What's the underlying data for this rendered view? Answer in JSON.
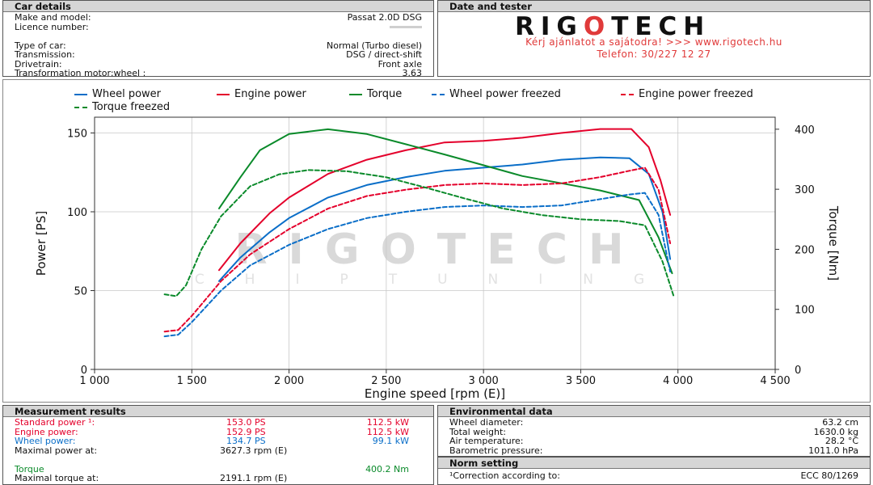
{
  "car_details": {
    "title": "Car details",
    "rows": [
      {
        "label": "Make and model:",
        "value": "Passat 2.0D DSG"
      },
      {
        "label": "Licence number:",
        "value": ""
      },
      {
        "label": "",
        "value": ""
      },
      {
        "label": "Type of car:",
        "value": "Normal (Turbo diesel)"
      },
      {
        "label": "Transmission:",
        "value": "DSG / direct-shift"
      },
      {
        "label": "Drivetrain:",
        "value": "Front axle"
      },
      {
        "label": "Transformation motor:wheel :",
        "value": "3.63"
      }
    ]
  },
  "tester": {
    "title": "Date and tester",
    "logo_left": "RIG",
    "logo_mid": "O",
    "logo_right": "TECH",
    "promo_line1": "Kérj ajánlatot a sajátodra!  >>>  www.rigotech.hu",
    "promo_line2": "Telefon: 30/227 12 27"
  },
  "watermark": {
    "big": "RIGOTECH",
    "small": "CHIPTUNING"
  },
  "colors": {
    "wheel": "#0a6ec8",
    "engine": "#e4002b",
    "torque": "#0a8a2a",
    "grid": "#c8c8c8",
    "plot_border": "#333333"
  },
  "chart_data": {
    "type": "line",
    "xlabel": "Engine speed [rpm (E)]",
    "ylabel": "Power [PS]",
    "y2label": "Torque [Nm]",
    "xlim": [
      1000,
      4500
    ],
    "ylim": [
      0,
      160
    ],
    "y2lim": [
      0,
      420
    ],
    "x_ticks": [
      1000,
      1500,
      2000,
      2500,
      3000,
      3500,
      4000,
      4500
    ],
    "x_tick_labels": [
      "1 000",
      "1 500",
      "2 000",
      "2 500",
      "3 000",
      "3 500",
      "4 000",
      "4 500"
    ],
    "y_ticks": [
      0,
      50,
      100,
      150
    ],
    "y2_ticks": [
      0,
      100,
      200,
      300,
      400
    ],
    "grid": true,
    "legend_position": "top",
    "series": [
      {
        "name": "Wheel power",
        "axis": "left",
        "style": "solid",
        "color": "#0a6ec8",
        "x": [
          1640,
          1750,
          1900,
          2000,
          2200,
          2400,
          2600,
          2800,
          3000,
          3200,
          3400,
          3600,
          3750,
          3850,
          3920,
          3960
        ],
        "y": [
          56,
          71,
          87,
          96,
          109,
          117,
          122,
          126,
          128,
          130,
          133,
          134.5,
          134,
          124,
          100,
          70
        ]
      },
      {
        "name": "Engine power",
        "axis": "left",
        "style": "solid",
        "color": "#e4002b",
        "x": [
          1640,
          1750,
          1900,
          2000,
          2200,
          2400,
          2600,
          2800,
          3000,
          3200,
          3400,
          3600,
          3760,
          3850,
          3910,
          3960
        ],
        "y": [
          63,
          80,
          99,
          109,
          124,
          133,
          139,
          144,
          145,
          147,
          150,
          152.5,
          152.5,
          141,
          120,
          98
        ]
      },
      {
        "name": "Torque",
        "axis": "right",
        "style": "solid",
        "color": "#0a8a2a",
        "x": [
          1640,
          1750,
          1850,
          2000,
          2200,
          2400,
          2600,
          2800,
          3000,
          3200,
          3400,
          3600,
          3800,
          3900,
          3970
        ],
        "y": [
          268,
          320,
          365,
          392,
          400,
          392,
          375,
          358,
          340,
          322,
          310,
          298,
          282,
          220,
          160
        ]
      },
      {
        "name": "Wheel power freezed",
        "axis": "left",
        "style": "dashed",
        "color": "#0a6ec8",
        "x": [
          1360,
          1430,
          1500,
          1650,
          1800,
          2000,
          2200,
          2400,
          2600,
          2800,
          3000,
          3200,
          3400,
          3600,
          3750,
          3830,
          3900,
          3960
        ],
        "y": [
          21,
          22,
          30,
          50,
          66,
          79,
          89,
          96,
          100,
          103,
          104,
          103,
          104,
          108,
          111,
          112,
          98,
          62
        ]
      },
      {
        "name": "Engine power freezed",
        "axis": "left",
        "style": "dashed",
        "color": "#e4002b",
        "x": [
          1360,
          1430,
          1500,
          1650,
          1800,
          2000,
          2200,
          2400,
          2600,
          2800,
          3000,
          3200,
          3400,
          3600,
          3750,
          3830,
          3900,
          3960
        ],
        "y": [
          24,
          25,
          34,
          56,
          73,
          89,
          102,
          110,
          114,
          117,
          118,
          117,
          118,
          122,
          126,
          128,
          114,
          80
        ]
      },
      {
        "name": "Torque freezed",
        "axis": "right",
        "style": "dashed",
        "color": "#0a8a2a",
        "x": [
          1360,
          1420,
          1470,
          1550,
          1650,
          1800,
          1950,
          2100,
          2300,
          2500,
          2700,
          2900,
          3100,
          3300,
          3500,
          3700,
          3830,
          3920,
          3980
        ],
        "y": [
          125,
          122,
          140,
          200,
          255,
          305,
          325,
          332,
          330,
          320,
          303,
          285,
          268,
          257,
          250,
          247,
          240,
          180,
          120
        ]
      }
    ]
  },
  "measurement": {
    "title": "Measurement results",
    "rows": [
      {
        "label": "Standard power ¹:",
        "v1": "153.0 PS",
        "v2": "112.5 kW",
        "color": "red"
      },
      {
        "label": "Engine power:",
        "v1": "152.9 PS",
        "v2": "112.5 kW",
        "color": "red"
      },
      {
        "label": "Wheel power:",
        "v1": "134.7 PS",
        "v2": "99.1 kW",
        "color": "blue"
      },
      {
        "label": "Maximal power at:",
        "v1": "3627.3 rpm (E)",
        "v2": "",
        "color": ""
      },
      {
        "label": "",
        "v1": "",
        "v2": "",
        "color": ""
      },
      {
        "label": "Torque",
        "v1": "",
        "v2": "400.2 Nm",
        "color": "green"
      },
      {
        "label": "Maximal torque at:",
        "v1": "2191.1 rpm (E)",
        "v2": "",
        "color": ""
      }
    ]
  },
  "environment": {
    "title": "Environmental data",
    "rows": [
      {
        "label": "Wheel diameter:",
        "value": "63.2 cm"
      },
      {
        "label": "Total weight:",
        "value": "1630.0 kg"
      },
      {
        "label": "Air temperature:",
        "value": "28.2 °C"
      },
      {
        "label": "Barometric pressure:",
        "value": "1011.0 hPa"
      }
    ]
  },
  "norm": {
    "title": "Norm setting",
    "label": "¹Correction according to:",
    "value": "ECC 80/1269"
  }
}
